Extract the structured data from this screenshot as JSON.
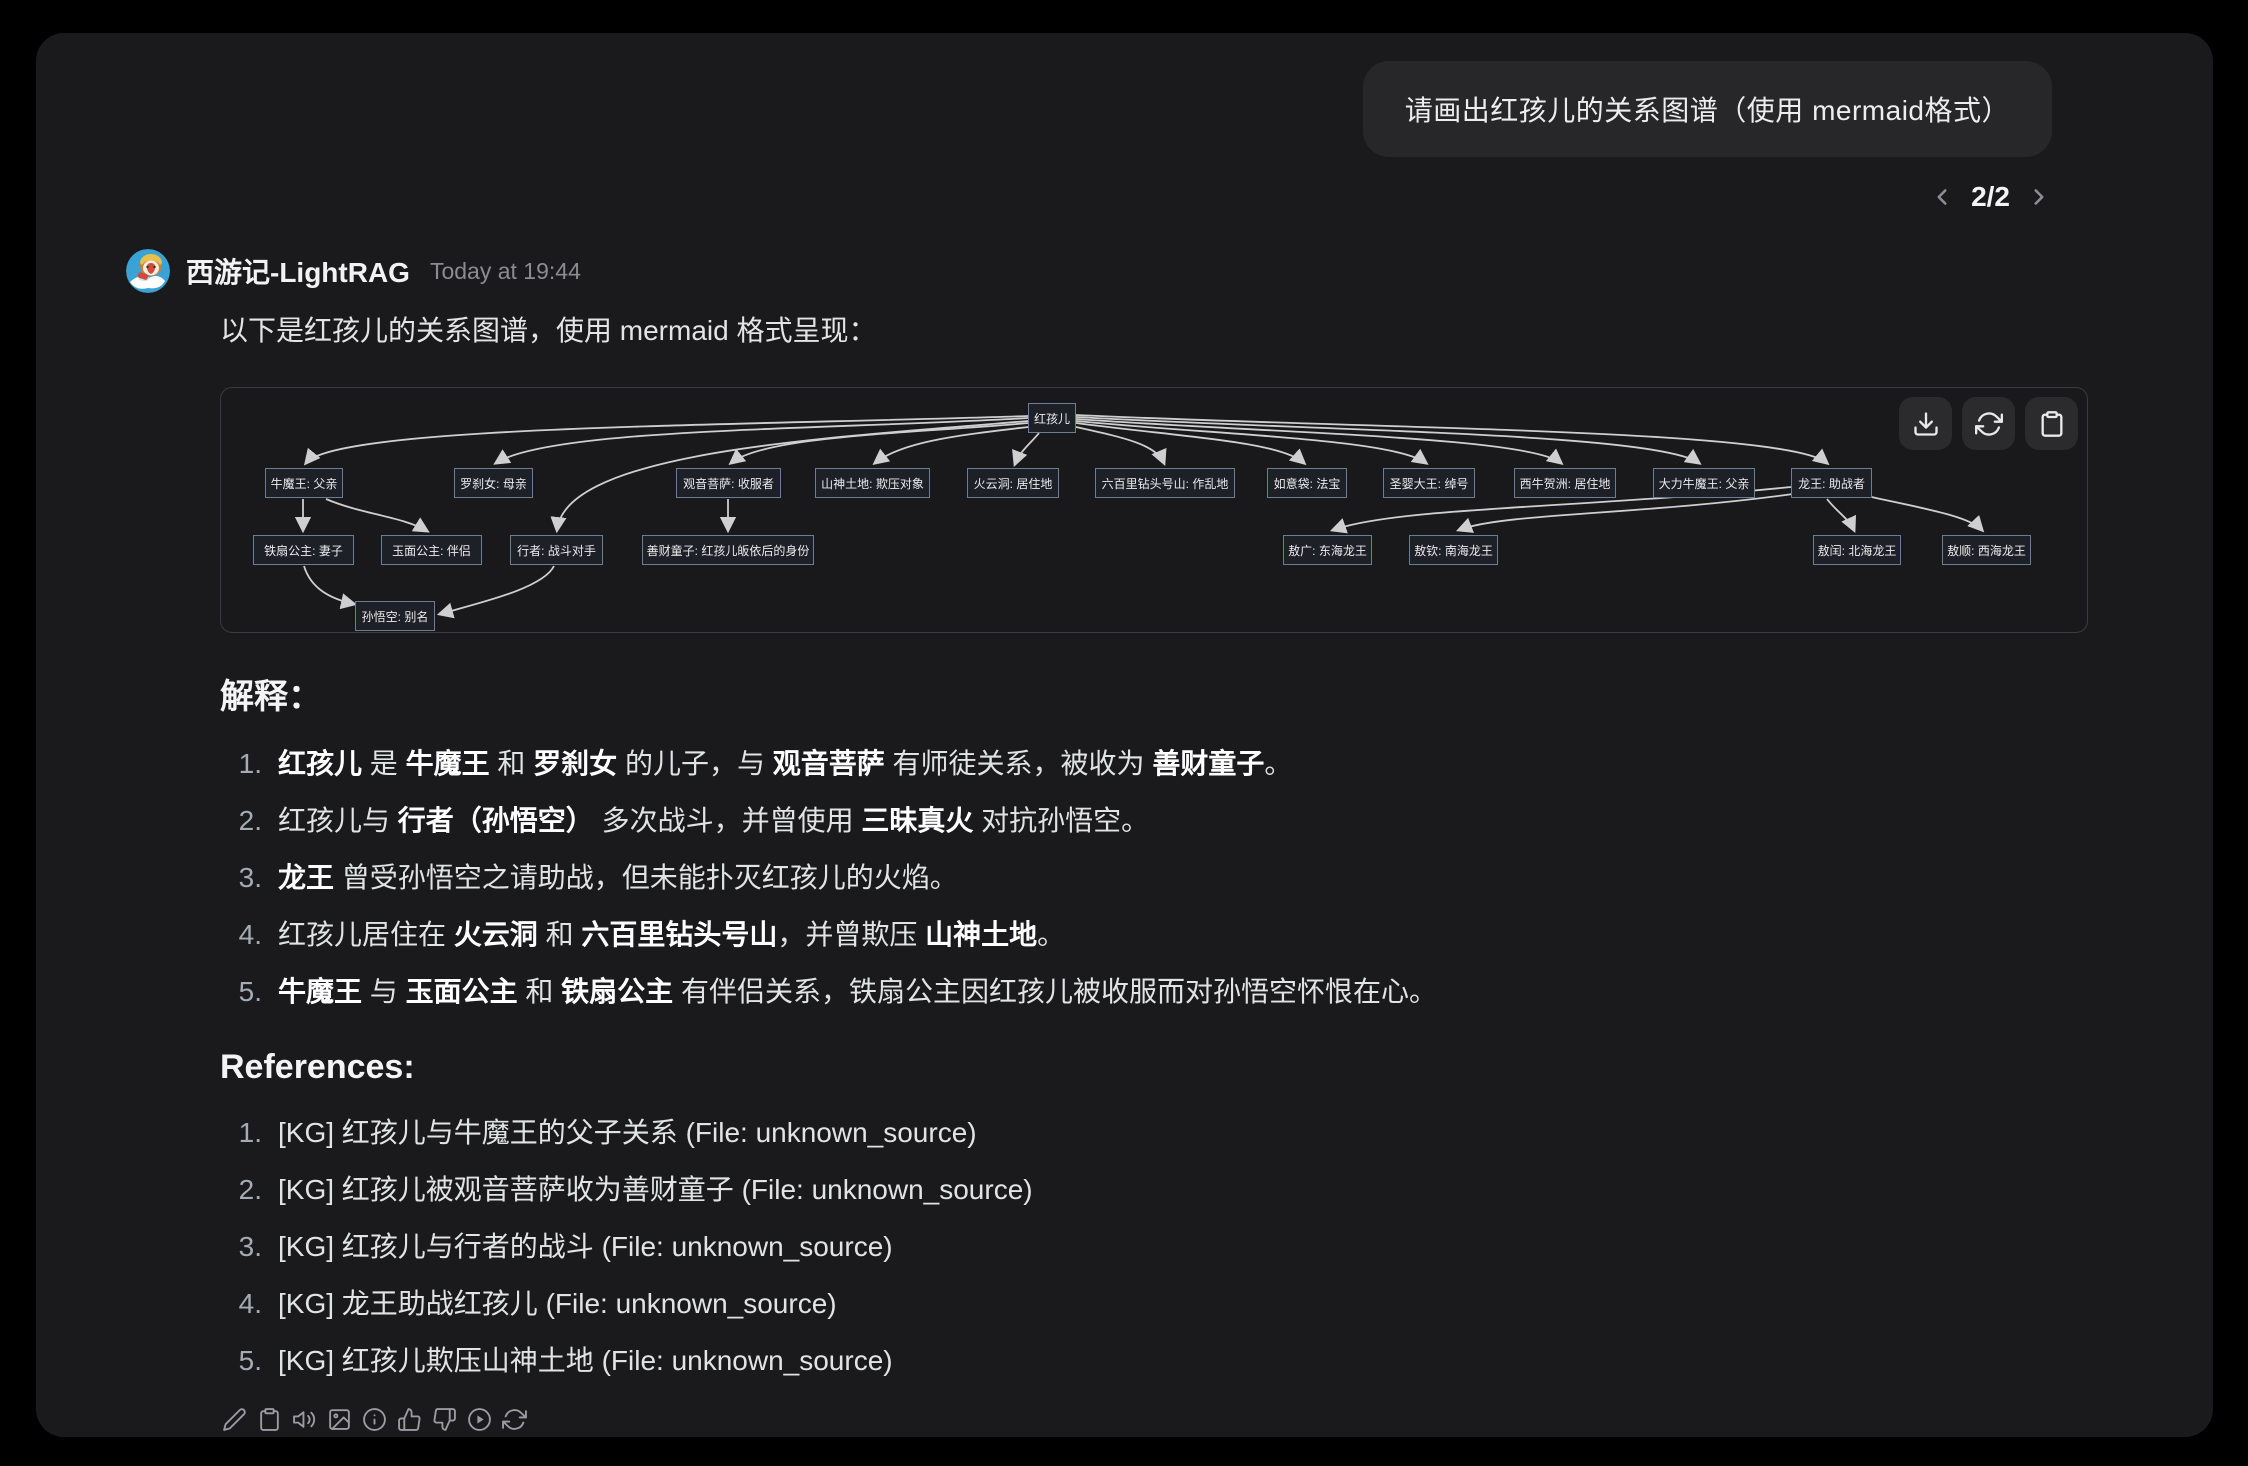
{
  "user": {
    "message": "请画出红孩儿的关系图谱（使用 mermaid格式）",
    "pagination": "2/2"
  },
  "assistant": {
    "name": "西游记-LightRAG",
    "timestamp": "Today at 19:44",
    "intro": "以下是红孩儿的关系图谱，使用 mermaid 格式呈现："
  },
  "diagram": {
    "toolbar_icons": [
      "download-icon",
      "refresh-icon",
      "clipboard-icon"
    ],
    "nodes": [
      {
        "label": "红孩儿"
      },
      {
        "label": "牛魔王: 父亲"
      },
      {
        "label": "罗刹女: 母亲"
      },
      {
        "label": "观音菩萨: 收服者"
      },
      {
        "label": "山神土地: 欺压对象"
      },
      {
        "label": "火云洞: 居住地"
      },
      {
        "label": "六百里钻头号山: 作乱地"
      },
      {
        "label": "如意袋: 法宝"
      },
      {
        "label": "圣婴大王: 绰号"
      },
      {
        "label": "西牛贺洲: 居住地"
      },
      {
        "label": "大力牛魔王: 父亲"
      },
      {
        "label": "龙王: 助战者"
      },
      {
        "label": "铁扇公主: 妻子"
      },
      {
        "label": "玉面公主: 伴侣"
      },
      {
        "label": "行者: 战斗对手"
      },
      {
        "label": "善财童子: 红孩儿皈依后的身份"
      },
      {
        "label": "敖广: 东海龙王"
      },
      {
        "label": "敖钦: 南海龙王"
      },
      {
        "label": "敖闰: 北海龙王"
      },
      {
        "label": "敖顺: 西海龙王"
      },
      {
        "label": "孙悟空: 别名"
      }
    ],
    "edges": [
      [
        0,
        1
      ],
      [
        0,
        2
      ],
      [
        0,
        3
      ],
      [
        0,
        4
      ],
      [
        0,
        5
      ],
      [
        0,
        6
      ],
      [
        0,
        7
      ],
      [
        0,
        8
      ],
      [
        0,
        9
      ],
      [
        0,
        10
      ],
      [
        0,
        11
      ],
      [
        0,
        14
      ],
      [
        1,
        12
      ],
      [
        1,
        13
      ],
      [
        3,
        15
      ],
      [
        12,
        20
      ],
      [
        14,
        20
      ],
      [
        11,
        16
      ],
      [
        11,
        17
      ],
      [
        11,
        18
      ],
      [
        11,
        19
      ]
    ]
  },
  "explanation": {
    "heading": "解释：",
    "items": [
      [
        {
          "t": "红孩儿",
          "b": true
        },
        {
          "t": " 是 "
        },
        {
          "t": "牛魔王",
          "b": true
        },
        {
          "t": " 和 "
        },
        {
          "t": "罗刹女",
          "b": true
        },
        {
          "t": " 的儿子，与 "
        },
        {
          "t": "观音菩萨",
          "b": true
        },
        {
          "t": " 有师徒关系，被收为 "
        },
        {
          "t": "善财童子",
          "b": true
        },
        {
          "t": "。"
        }
      ],
      [
        {
          "t": "红孩儿与 "
        },
        {
          "t": "行者（孙悟空）",
          "b": true
        },
        {
          "t": " 多次战斗，并曾使用 "
        },
        {
          "t": "三昧真火",
          "b": true
        },
        {
          "t": " 对抗孙悟空。"
        }
      ],
      [
        {
          "t": "龙王",
          "b": true
        },
        {
          "t": " 曾受孙悟空之请助战，但未能扑灭红孩儿的火焰。"
        }
      ],
      [
        {
          "t": "红孩儿居住在 "
        },
        {
          "t": "火云洞",
          "b": true
        },
        {
          "t": " 和 "
        },
        {
          "t": "六百里钻头号山",
          "b": true
        },
        {
          "t": "，并曾欺压 "
        },
        {
          "t": "山神土地",
          "b": true
        },
        {
          "t": "。"
        }
      ],
      [
        {
          "t": "牛魔王",
          "b": true
        },
        {
          "t": " 与 "
        },
        {
          "t": "玉面公主",
          "b": true
        },
        {
          "t": " 和 "
        },
        {
          "t": "铁扇公主",
          "b": true
        },
        {
          "t": " 有伴侣关系，铁扇公主因红孩儿被收服而对孙悟空怀恨在心。"
        }
      ]
    ]
  },
  "references": {
    "heading": "References:",
    "items": [
      "[KG] 红孩儿与牛魔王的父子关系 (File: unknown_source)",
      "[KG] 红孩儿被观音菩萨收为善财童子 (File: unknown_source)",
      "[KG] 红孩儿与行者的战斗 (File: unknown_source)",
      "[KG] 龙王助战红孩儿 (File: unknown_source)",
      "[KG] 红孩儿欺压山神土地 (File: unknown_source)"
    ]
  },
  "message_actions": [
    "edit-icon",
    "copy-icon",
    "read-aloud-icon",
    "image-icon",
    "info-icon",
    "thumbs-up-icon",
    "thumbs-down-icon",
    "play-icon",
    "regenerate-icon"
  ]
}
